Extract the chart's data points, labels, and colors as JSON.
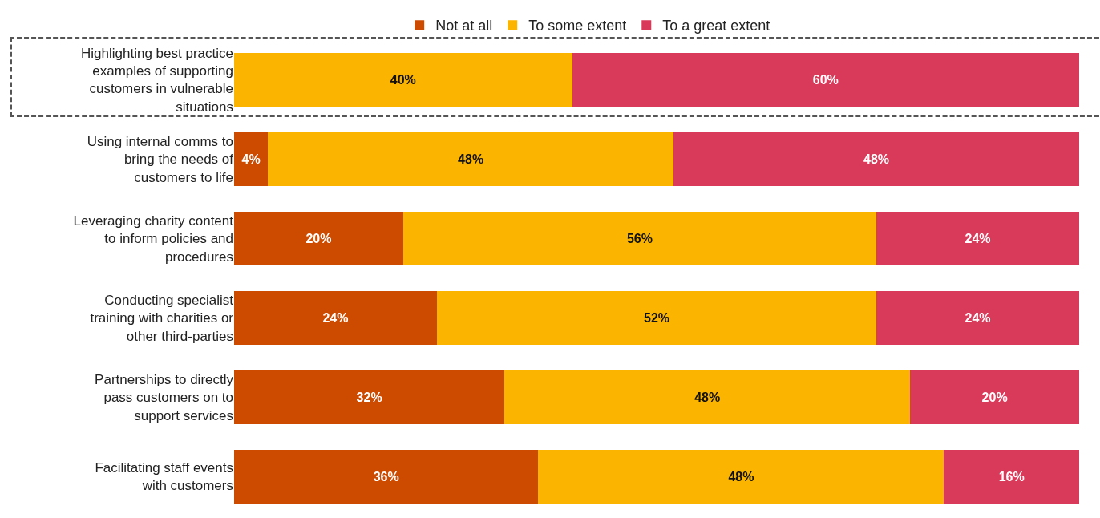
{
  "chart_data": {
    "type": "bar",
    "orientation": "horizontal",
    "stacked": true,
    "legend": "top",
    "tick_labels": "y",
    "grid": false,
    "categories": [
      "Highlighting best practice examples of supporting customers in vulnerable situations",
      "Using internal comms to bring the needs of customers to life",
      "Leveraging charity content to inform policies and procedures",
      "Conducting specialist training with charities or other third-parties",
      "Partnerships to directly pass customers on to support services",
      "Facilitating staff events with customers"
    ],
    "series": [
      {
        "name": "Not at all",
        "color": "#cc4b00",
        "values": [
          0,
          4,
          20,
          24,
          32,
          36
        ],
        "value_labels": [
          null,
          "4%",
          "20%",
          "24%",
          "32%",
          "36%"
        ]
      },
      {
        "name": "To some extent",
        "color": "#fbb400",
        "values": [
          40,
          48,
          56,
          52,
          48,
          48
        ],
        "value_labels": [
          "40%",
          "48%",
          "56%",
          "52%",
          "48%",
          "48%"
        ]
      },
      {
        "name": "To a great extent",
        "color": "#d93a5a",
        "values": [
          60,
          48,
          24,
          24,
          20,
          16
        ],
        "value_labels": [
          "60%",
          "48%",
          "24%",
          "24%",
          "20%",
          "16%"
        ]
      }
    ]
  }
}
